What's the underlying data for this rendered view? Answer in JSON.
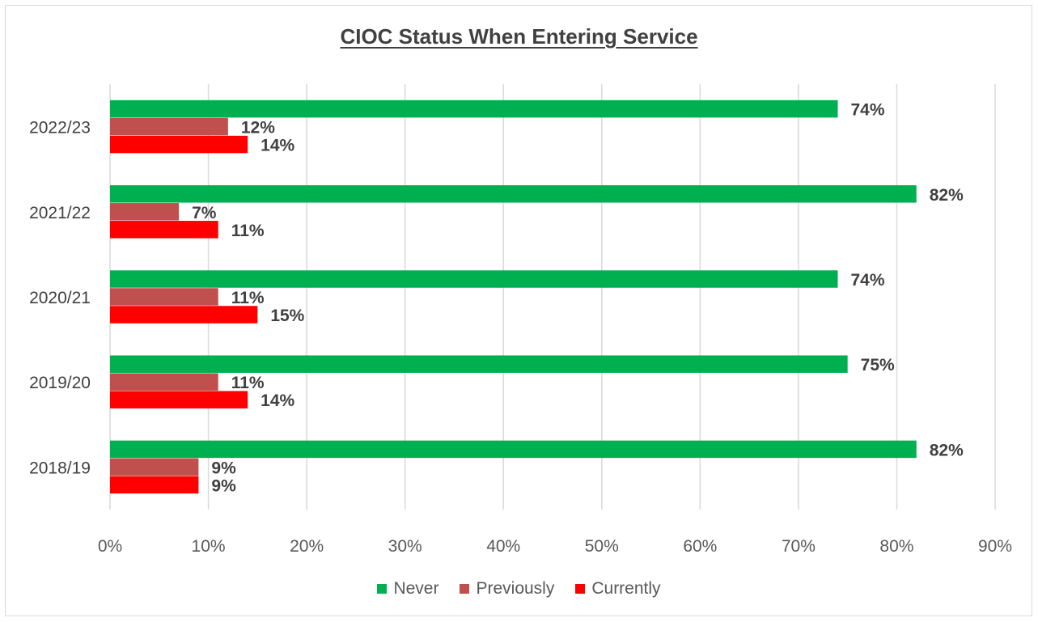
{
  "chart_data": {
    "type": "bar",
    "orientation": "horizontal",
    "title": "CIOC Status When Entering Service",
    "categories": [
      "2022/23",
      "2021/22",
      "2020/21",
      "2019/20",
      "2018/19"
    ],
    "series": [
      {
        "name": "Never",
        "color": "#00b050",
        "values": [
          74,
          82,
          74,
          75,
          82
        ],
        "labels": [
          "74%",
          "82%",
          "74%",
          "75%",
          "82%"
        ]
      },
      {
        "name": "Previously",
        "color": "#c0504d",
        "values": [
          12,
          7,
          11,
          11,
          9
        ],
        "labels": [
          "12%",
          "7%",
          "11%",
          "11%",
          "9%"
        ]
      },
      {
        "name": "Currently",
        "color": "#ff0000",
        "values": [
          14,
          11,
          15,
          14,
          9
        ],
        "labels": [
          "14%",
          "11%",
          "15%",
          "14%",
          "9%"
        ]
      }
    ],
    "xlim": [
      0,
      90
    ],
    "xticks": [
      "0%",
      "10%",
      "20%",
      "30%",
      "40%",
      "50%",
      "60%",
      "70%",
      "80%",
      "90%"
    ],
    "grid": true,
    "legend_position": "bottom"
  }
}
